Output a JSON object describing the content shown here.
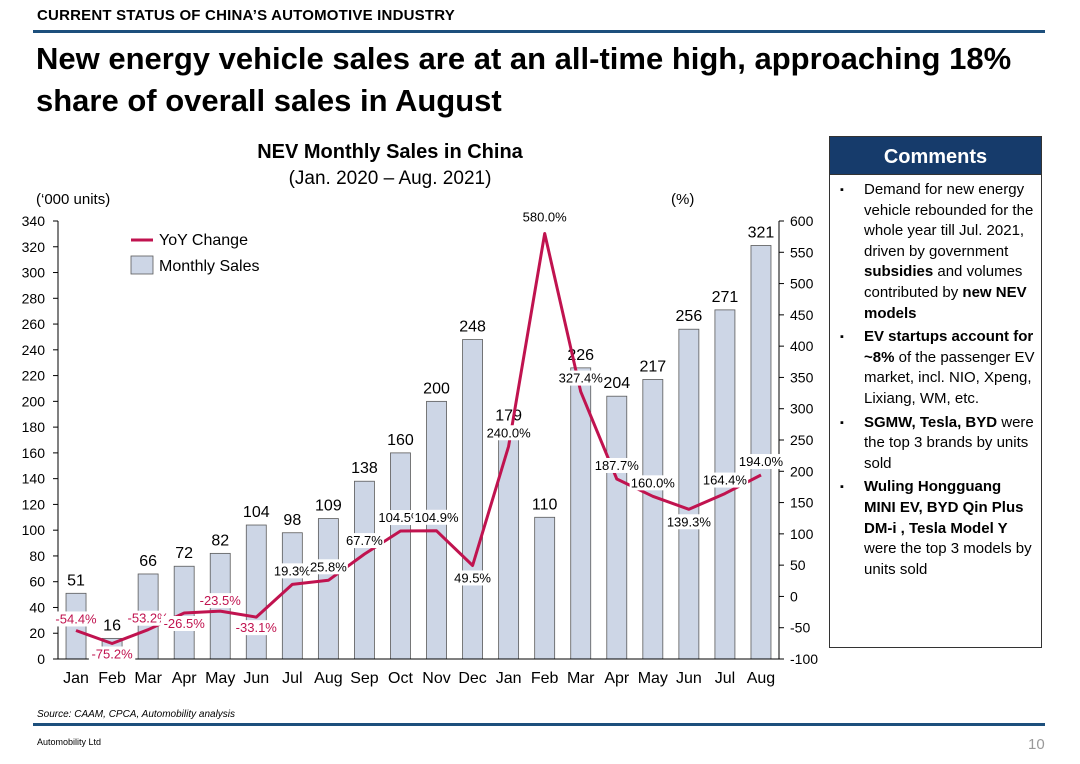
{
  "header": {
    "section": "CURRENT STATUS OF CHINA’S AUTOMOTIVE INDUSTRY",
    "headline": "New energy vehicle sales are at an all-time high, approaching 18% share of overall sales in August"
  },
  "chart_data": {
    "type": "bar",
    "title": "NEV Monthly Sales in China",
    "subtitle": "(Jan. 2020 – Aug. 2021)",
    "ylabel_left": "(‘000 units)",
    "ylabel_right": "(%)",
    "ylim_left": [
      0,
      340
    ],
    "yticks_left": [
      0,
      20,
      40,
      60,
      80,
      100,
      120,
      140,
      160,
      180,
      200,
      220,
      240,
      260,
      280,
      300,
      320,
      340
    ],
    "ylim_right": [
      -100,
      600
    ],
    "yticks_right": [
      -100,
      -50,
      0,
      50,
      100,
      150,
      200,
      250,
      300,
      350,
      400,
      450,
      500,
      550,
      600
    ],
    "categories": [
      "Jan",
      "Feb",
      "Mar",
      "Apr",
      "May",
      "Jun",
      "Jul",
      "Aug",
      "Sep",
      "Oct",
      "Nov",
      "Dec",
      "Jan",
      "Feb",
      "Mar",
      "Apr",
      "May",
      "Jun",
      "Jul",
      "Aug"
    ],
    "series": [
      {
        "name": "Monthly Sales",
        "type": "bar",
        "axis": "left",
        "color": "#cdd6e6",
        "values": [
          51,
          16,
          66,
          72,
          82,
          104,
          98,
          109,
          138,
          160,
          200,
          248,
          179,
          110,
          226,
          204,
          217,
          256,
          271,
          321
        ]
      },
      {
        "name": "YoY Change",
        "type": "line",
        "axis": "right",
        "color": "#c0134f",
        "start_index": 0,
        "values": [
          -54.4,
          -75.2,
          -53.2,
          -26.5,
          -23.5,
          -33.1,
          19.3,
          25.8,
          67.7,
          104.5,
          104.9,
          49.5,
          240.0,
          580.0,
          327.4,
          187.7,
          160.0,
          139.3,
          164.4,
          194.0
        ],
        "labels": [
          "-54.4%",
          "-75.2%",
          "-53.2%",
          "-26.5%",
          "-23.5%",
          "-33.1%",
          "19.3%",
          "25.8%",
          "67.7%",
          "104.5%",
          "104.9%",
          "49.5%",
          "240.0%",
          "580.0%",
          "327.4%",
          "187.7%",
          "160.0%",
          "139.3%",
          "164.4%",
          "194.0%"
        ]
      }
    ],
    "legend": {
      "position": "top-left",
      "entries": [
        "YoY Change",
        "Monthly Sales"
      ]
    },
    "grid": false
  },
  "comments": {
    "title": "Comments",
    "items": [
      {
        "parts": [
          {
            "t": "Demand for new energy vehicle rebounded for the whole year till Jul. 2021, driven by government ",
            "b": false
          },
          {
            "t": "subsidies",
            "b": true
          },
          {
            "t": " and volumes contributed by ",
            "b": false
          },
          {
            "t": "new NEV models",
            "b": true
          }
        ]
      },
      {
        "parts": [
          {
            "t": "EV startups account for ~8%",
            "b": true
          },
          {
            "t": " of the passenger EV market, incl. NIO, Xpeng, Lixiang, WM, etc.",
            "b": false
          }
        ]
      },
      {
        "parts": [
          {
            "t": "SGMW, Tesla, BYD",
            "b": true
          },
          {
            "t": " were the top 3 brands by units sold",
            "b": false
          }
        ]
      },
      {
        "parts": [
          {
            "t": "Wuling Hongguang MINI EV, BYD Qin Plus DM-i , Tesla Model Y",
            "b": true
          },
          {
            "t": " were the top 3 models by units sold",
            "b": false
          }
        ]
      }
    ],
    "bullet": "▪"
  },
  "footer": {
    "source": "Source: CAAM, CPCA, Automobility analysis",
    "company": "Automobility Ltd",
    "page": "10"
  }
}
